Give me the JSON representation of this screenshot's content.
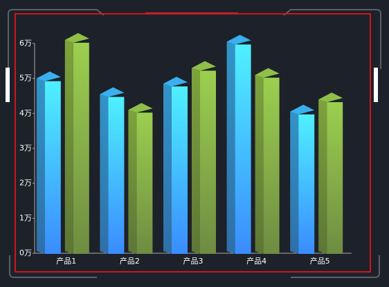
{
  "chart_data": {
    "type": "bar3d",
    "categories": [
      "产品1",
      "产品2",
      "产品3",
      "产品4",
      "产品5"
    ],
    "series": [
      {
        "color": "#3fb6ff",
        "values": [
          50000,
          45500,
          48500,
          60500,
          40500
        ]
      },
      {
        "color": "#8fc24c",
        "values": [
          61000,
          41000,
          53000,
          51000,
          44000
        ]
      }
    ],
    "ylim": [
      0,
      60000
    ],
    "yticks": [
      {
        "value": 0,
        "label": "0万"
      },
      {
        "value": 10000,
        "label": "1万"
      },
      {
        "value": 20000,
        "label": "2万"
      },
      {
        "value": 30000,
        "label": "3万"
      },
      {
        "value": 40000,
        "label": "4万"
      },
      {
        "value": 50000,
        "label": "5万"
      },
      {
        "value": 60000,
        "label": "6万"
      }
    ]
  }
}
